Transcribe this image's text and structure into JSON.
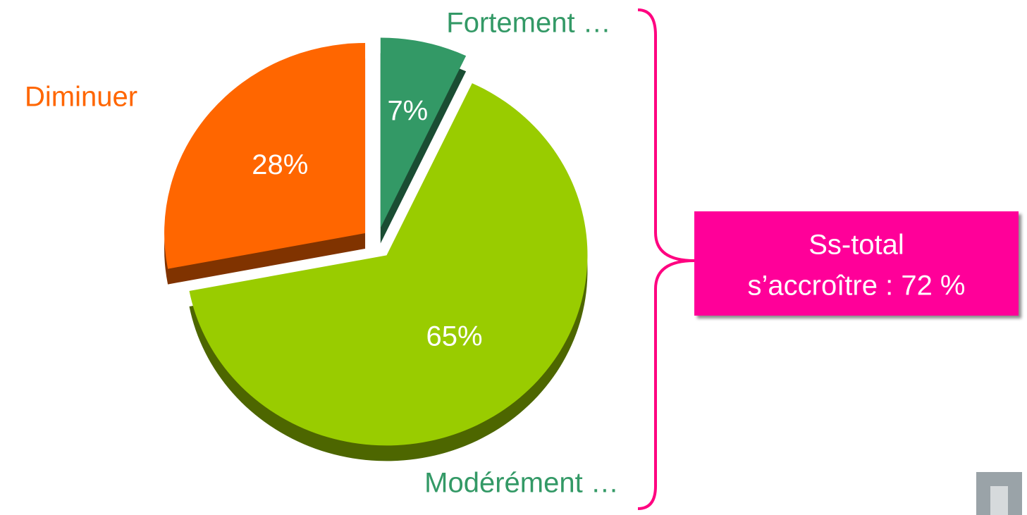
{
  "chart_data": {
    "type": "pie",
    "categories": [
      "Fortement …",
      "Modérément …",
      "Diminuer"
    ],
    "values": [
      7,
      65,
      28
    ],
    "value_labels": [
      "7%",
      "65%",
      "28%"
    ],
    "colors": [
      "#339966",
      "#99cc00",
      "#ff6600"
    ],
    "annotation": [
      "Ss-total",
      "s’accroître : 72 %"
    ]
  }
}
